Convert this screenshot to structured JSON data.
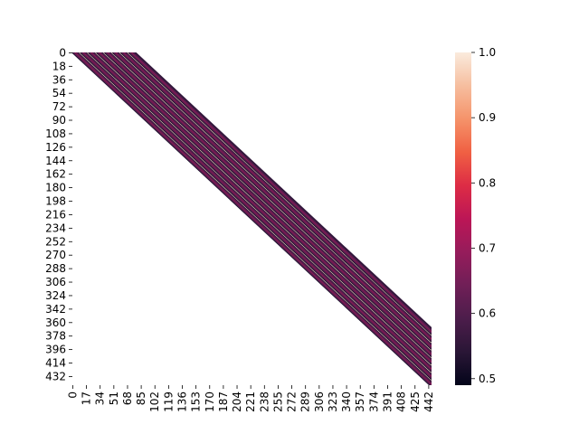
{
  "chart_data": {
    "type": "heatmap",
    "title": "",
    "xlabel": "",
    "ylabel": "",
    "rows": 444,
    "cols": 446,
    "x_tick_labels": [
      "0",
      "17",
      "34",
      "51",
      "68",
      "85",
      "102",
      "119",
      "136",
      "153",
      "170",
      "187",
      "204",
      "221",
      "238",
      "255",
      "272",
      "289",
      "306",
      "323",
      "340",
      "357",
      "374",
      "391",
      "408",
      "425",
      "442"
    ],
    "y_tick_labels": [
      "0",
      "18",
      "36",
      "54",
      "72",
      "90",
      "108",
      "126",
      "144",
      "162",
      "180",
      "198",
      "216",
      "234",
      "252",
      "270",
      "288",
      "306",
      "324",
      "342",
      "360",
      "378",
      "396",
      "414",
      "432"
    ],
    "band": {
      "description_free_note": "",
      "col_offset_start": 0,
      "col_offset_end": 78,
      "stripe_period": 10,
      "stripe_values": [
        0.5,
        0.58,
        0.62,
        0.6,
        0.72,
        0.6,
        0.62,
        0.58,
        0.55,
        0.98
      ],
      "masked_color": "#ffffff"
    },
    "colorbar": {
      "min": 0.49,
      "max": 1.0,
      "tick_labels": [
        "0.5",
        "0.6",
        "0.7",
        "0.8",
        "0.9",
        "1.0"
      ],
      "tick_values": [
        0.5,
        0.6,
        0.7,
        0.8,
        0.9,
        1.0
      ],
      "colormap": "rocket"
    }
  }
}
